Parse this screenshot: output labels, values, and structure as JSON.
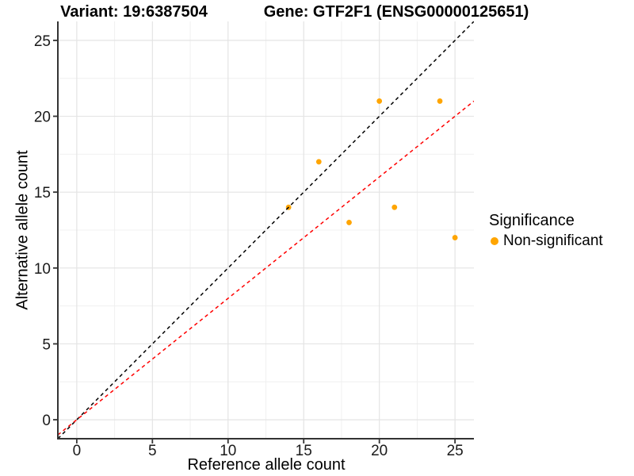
{
  "titles": {
    "variant": "Variant: 19:6387504",
    "gene": "Gene: GTF2F1 (ENSG00000125651)"
  },
  "chart_data": {
    "type": "scatter",
    "title": "Variant: 19:6387504  /  Gene: GTF2F1 (ENSG00000125651)",
    "xlabel": "Reference allele count",
    "ylabel": "Alternative allele count",
    "xlim": [
      -1.25,
      26.25
    ],
    "ylim": [
      -1.25,
      26.25
    ],
    "x_ticks": [
      0,
      5,
      10,
      15,
      20,
      25
    ],
    "y_ticks": [
      0,
      5,
      10,
      15,
      20,
      25
    ],
    "minor_grid_step": 2.5,
    "grid": true,
    "points": [
      [
        14,
        14
      ],
      [
        16,
        17
      ],
      [
        18,
        13
      ],
      [
        20,
        21
      ],
      [
        21,
        14
      ],
      [
        24,
        21
      ],
      [
        25,
        12
      ]
    ],
    "point_color": "#FFA500",
    "lines": [
      {
        "name": "identity-line",
        "slope": 1,
        "intercept": 0,
        "color": "#000000",
        "dashed": true
      },
      {
        "name": "fit-line",
        "slope": 0.8,
        "intercept": 0,
        "color": "#FF0000",
        "dashed": true
      }
    ],
    "legend": {
      "title": "Significance",
      "position": "right",
      "items": [
        {
          "label": "Non-significant",
          "color": "#FFA500"
        }
      ]
    }
  }
}
